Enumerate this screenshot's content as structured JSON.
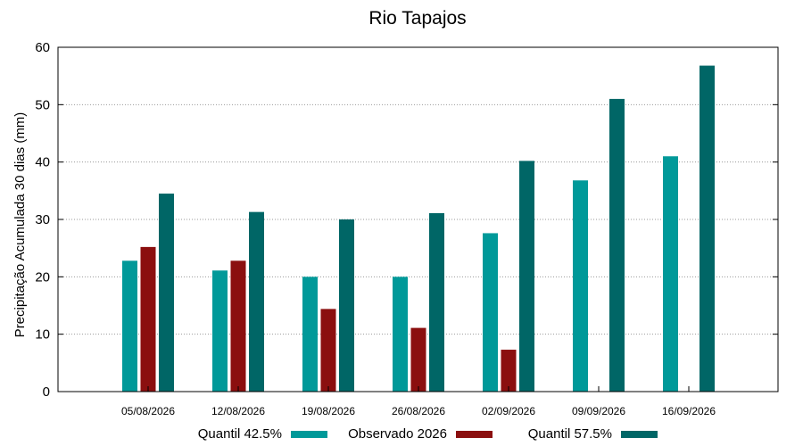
{
  "chart_data": {
    "type": "bar",
    "title": "Rio Tapajos",
    "xlabel": "",
    "ylabel": "Precipitação Acumulada 30 dias (mm)",
    "ylim": [
      0,
      60
    ],
    "yticks": [
      "0",
      "10",
      "20",
      "30",
      "40",
      "50",
      "60"
    ],
    "grid": true,
    "legend_position": "bottom",
    "categories": [
      "05/08/2026",
      "12/08/2026",
      "19/08/2026",
      "26/08/2026",
      "02/09/2026",
      "09/09/2026",
      "16/09/2026"
    ],
    "series": [
      {
        "name": "Quantil 42.5%",
        "color": "#009999",
        "values": [
          22.8,
          21.1,
          20.0,
          20.0,
          27.6,
          36.8,
          41.0
        ]
      },
      {
        "name": "Observado 2026",
        "color": "#8b0f0f",
        "values": [
          25.2,
          22.8,
          14.4,
          11.1,
          7.3,
          null,
          null
        ]
      },
      {
        "name": "Quantil 57.5%",
        "color": "#006666",
        "values": [
          34.5,
          31.3,
          30.0,
          31.1,
          40.2,
          51.0,
          56.8
        ]
      }
    ]
  }
}
